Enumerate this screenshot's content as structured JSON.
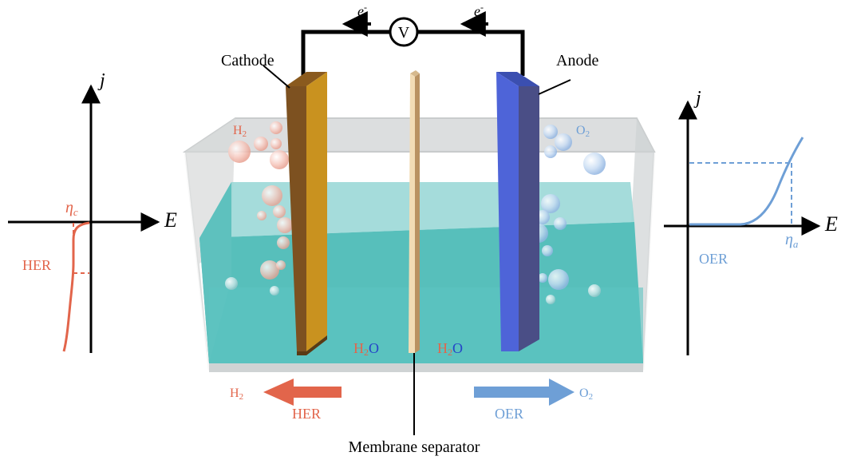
{
  "circuit": {
    "voltmeter_label": "V",
    "electron_left": "e",
    "electron_right": "e",
    "electron_superscript": "-"
  },
  "electrodes": {
    "cathode_label": "Cathode",
    "anode_label": "Anode",
    "cathode_color": "#b07a1c",
    "anode_color": "#4a5bc8"
  },
  "cell": {
    "gas_left": "H",
    "gas_left_sub": "2",
    "gas_right": "O",
    "gas_right_sub": "2",
    "water_left": "H",
    "water_left_sub": "2",
    "water_left_o": "O",
    "water_right": "H",
    "water_right_sub": "2",
    "water_right_o": "O",
    "separator_label": "Membrane separator",
    "electrolyte_color": "#3fb6b2"
  },
  "outputs": {
    "left_gas": "H",
    "left_gas_sub": "2",
    "left_reaction": "HER",
    "right_gas": "O",
    "right_gas_sub": "2",
    "right_reaction": "OER",
    "her_color": "#e2654b",
    "oer_color": "#6e9fd6"
  },
  "her_plot": {
    "y_label": "j",
    "x_label": "E",
    "overpotential": "η",
    "overpotential_sub": "c",
    "reaction": "HER"
  },
  "oer_plot": {
    "y_label": "j",
    "x_label": "E",
    "overpotential": "η",
    "overpotential_sub": "a",
    "reaction": "OER"
  }
}
